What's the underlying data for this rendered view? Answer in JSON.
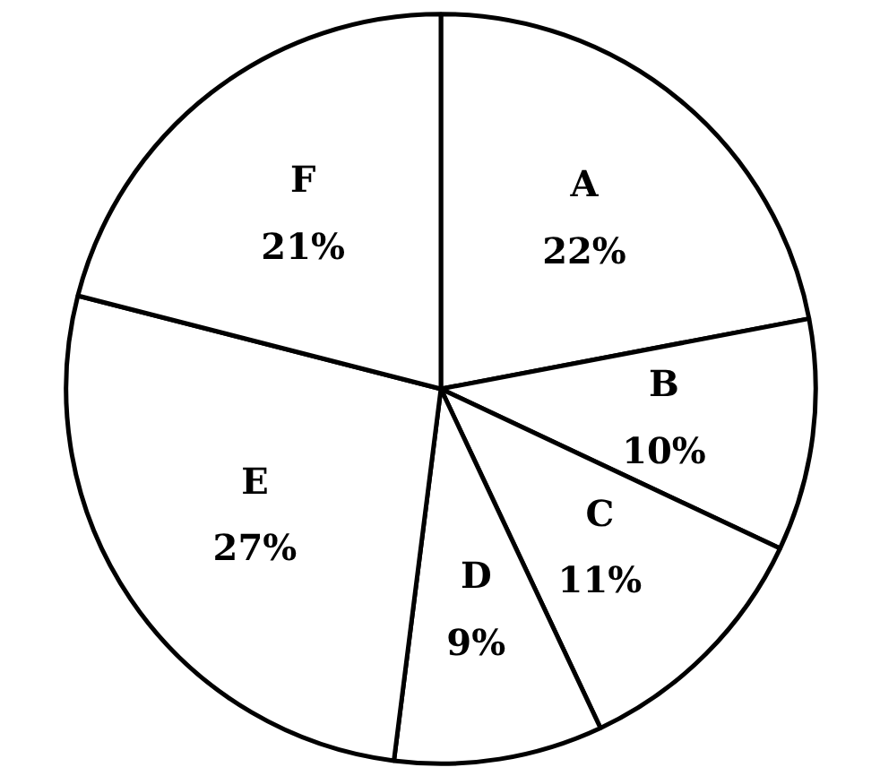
{
  "chart_data": {
    "type": "pie",
    "categories": [
      "A",
      "B",
      "C",
      "D",
      "E",
      "F"
    ],
    "values": [
      22,
      10,
      11,
      9,
      27,
      21
    ],
    "value_labels": [
      "22%",
      "10%",
      "11%",
      "9%",
      "27%",
      "21%"
    ],
    "colors": [
      "#ffffff",
      "#ffffff",
      "#ffffff",
      "#ffffff",
      "#ffffff",
      "#ffffff"
    ]
  }
}
